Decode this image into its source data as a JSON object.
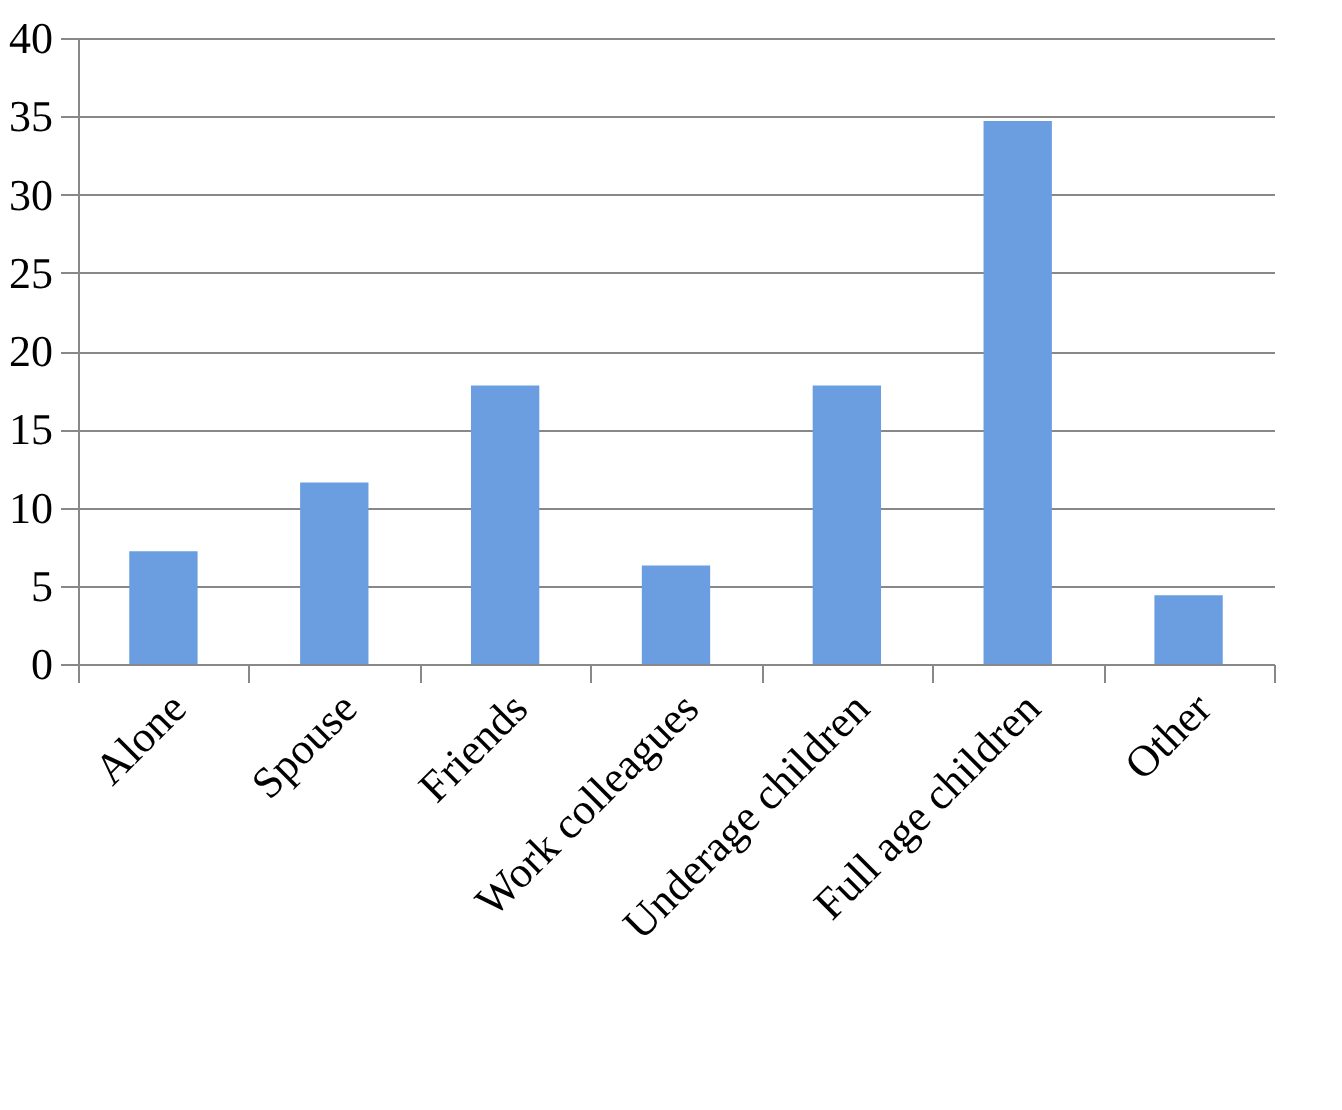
{
  "chart_data": {
    "type": "bar",
    "categories": [
      "Alone",
      "Spouse",
      "Friends",
      "Work colleagues",
      "Underage children",
      "Full age children",
      "Other"
    ],
    "values": [
      7.2,
      11.6,
      17.8,
      6.3,
      17.8,
      34.7,
      4.4
    ],
    "color": "#6a9ee0",
    "ylim": [
      0,
      40
    ],
    "yticks": [
      0,
      5,
      10,
      15,
      20,
      25,
      30,
      35,
      40
    ],
    "grid": "y"
  }
}
